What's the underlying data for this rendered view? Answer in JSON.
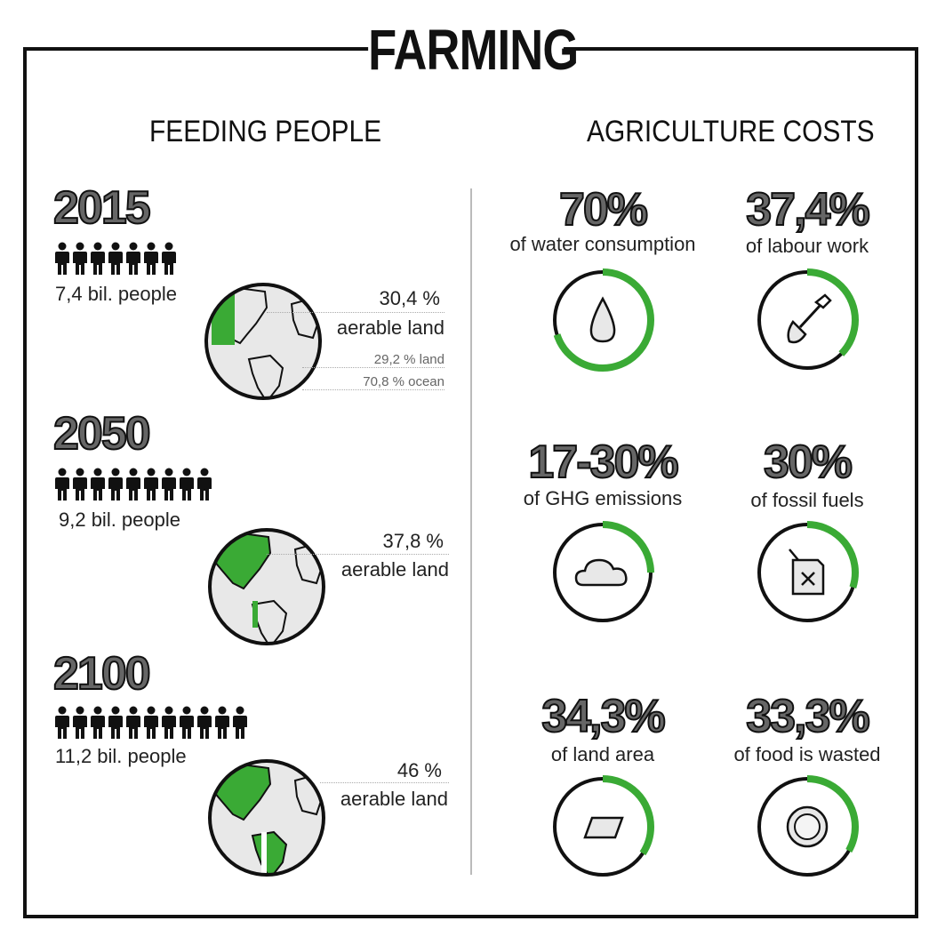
{
  "title": "FARMING",
  "feeding": {
    "title": "FEEDING PEOPLE",
    "years": [
      {
        "year": "2015",
        "people_label": "7,4 bil. people",
        "people_icons": 7,
        "arable": "30,4 %",
        "arable_label": "aerable land",
        "land_note": "29,2 % land",
        "ocean_note": "70,8 % ocean"
      },
      {
        "year": "2050",
        "people_label": "9,2 bil. people",
        "people_icons": 9,
        "arable": "37,8 %",
        "arable_label": "aerable land"
      },
      {
        "year": "2100",
        "people_label": "11,2 bil. people",
        "people_icons": 11,
        "arable": "46 %",
        "arable_label": "aerable land"
      }
    ]
  },
  "costs": {
    "title": "AGRICULTURE COSTS",
    "items": [
      {
        "pct": "70%",
        "label": "of water consumption",
        "icon": "water-drop-icon",
        "fill": 0.7
      },
      {
        "pct": "37,4%",
        "label": "of labour work",
        "icon": "shovel-icon",
        "fill": 0.374
      },
      {
        "pct": "17-30%",
        "label": "of GHG emissions",
        "icon": "cloud-icon",
        "fill": 0.25
      },
      {
        "pct": "30%",
        "label": "of fossil fuels",
        "icon": "fuel-can-icon",
        "fill": 0.3
      },
      {
        "pct": "34,3%",
        "label": "of land area",
        "icon": "land-parallelogram-icon",
        "fill": 0.343
      },
      {
        "pct": "33,3%",
        "label": "of food is wasted",
        "icon": "plate-icon",
        "fill": 0.333
      }
    ]
  },
  "colors": {
    "accent": "#3aaa35",
    "dark": "#111111",
    "gray": "#666666",
    "globe": "#e8e8e8"
  }
}
